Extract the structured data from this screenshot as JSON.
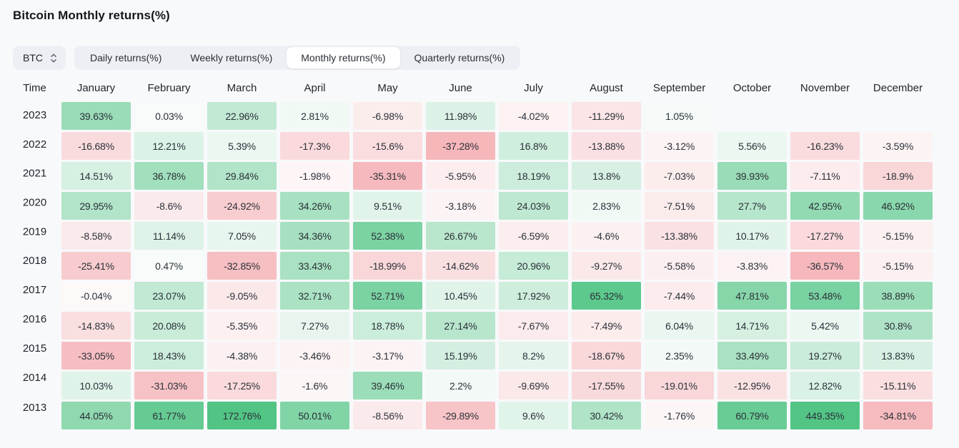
{
  "page": {
    "title": "Bitcoin Monthly returns(%)"
  },
  "selector": {
    "value": "BTC",
    "icon": "chevron-up-down-icon"
  },
  "tabs": [
    {
      "label": "Daily returns(%)",
      "active": false
    },
    {
      "label": "Weekly returns(%)",
      "active": false
    },
    {
      "label": "Monthly returns(%)",
      "active": true
    },
    {
      "label": "Quarterly returns(%)",
      "active": false
    }
  ],
  "heatmap": {
    "positive_max_color": "#52c585",
    "positive_min_color": "#f8fbfa",
    "negative_max_color": "#f5b2b6",
    "negative_min_color": "#fdf9f9",
    "positive_saturation_at": 70,
    "negative_saturation_at": 40
  },
  "chart_data": {
    "type": "heatmap",
    "title": "Bitcoin Monthly returns(%)",
    "time_label": "Time",
    "months": [
      "January",
      "February",
      "March",
      "April",
      "May",
      "June",
      "July",
      "August",
      "September",
      "October",
      "November",
      "December"
    ],
    "rows": [
      {
        "year": "2023",
        "values": [
          "39.63%",
          "0.03%",
          "22.96%",
          "2.81%",
          "-6.98%",
          "11.98%",
          "-4.02%",
          "-11.29%",
          "1.05%",
          null,
          null,
          null
        ]
      },
      {
        "year": "2022",
        "values": [
          "-16.68%",
          "12.21%",
          "5.39%",
          "-17.3%",
          "-15.6%",
          "-37.28%",
          "16.8%",
          "-13.88%",
          "-3.12%",
          "5.56%",
          "-16.23%",
          "-3.59%"
        ]
      },
      {
        "year": "2021",
        "values": [
          "14.51%",
          "36.78%",
          "29.84%",
          "-1.98%",
          "-35.31%",
          "-5.95%",
          "18.19%",
          "13.8%",
          "-7.03%",
          "39.93%",
          "-7.11%",
          "-18.9%"
        ]
      },
      {
        "year": "2020",
        "values": [
          "29.95%",
          "-8.6%",
          "-24.92%",
          "34.26%",
          "9.51%",
          "-3.18%",
          "24.03%",
          "2.83%",
          "-7.51%",
          "27.7%",
          "42.95%",
          "46.92%"
        ]
      },
      {
        "year": "2019",
        "values": [
          "-8.58%",
          "11.14%",
          "7.05%",
          "34.36%",
          "52.38%",
          "26.67%",
          "-6.59%",
          "-4.6%",
          "-13.38%",
          "10.17%",
          "-17.27%",
          "-5.15%"
        ]
      },
      {
        "year": "2018",
        "values": [
          "-25.41%",
          "0.47%",
          "-32.85%",
          "33.43%",
          "-18.99%",
          "-14.62%",
          "20.96%",
          "-9.27%",
          "-5.58%",
          "-3.83%",
          "-36.57%",
          "-5.15%"
        ]
      },
      {
        "year": "2017",
        "values": [
          "-0.04%",
          "23.07%",
          "-9.05%",
          "32.71%",
          "52.71%",
          "10.45%",
          "17.92%",
          "65.32%",
          "-7.44%",
          "47.81%",
          "53.48%",
          "38.89%"
        ]
      },
      {
        "year": "2016",
        "values": [
          "-14.83%",
          "20.08%",
          "-5.35%",
          "7.27%",
          "18.78%",
          "27.14%",
          "-7.67%",
          "-7.49%",
          "6.04%",
          "14.71%",
          "5.42%",
          "30.8%"
        ]
      },
      {
        "year": "2015",
        "values": [
          "-33.05%",
          "18.43%",
          "-4.38%",
          "-3.46%",
          "-3.17%",
          "15.19%",
          "8.2%",
          "-18.67%",
          "2.35%",
          "33.49%",
          "19.27%",
          "13.83%"
        ]
      },
      {
        "year": "2014",
        "values": [
          "10.03%",
          "-31.03%",
          "-17.25%",
          "-1.6%",
          "39.46%",
          "2.2%",
          "-9.69%",
          "-17.55%",
          "-19.01%",
          "-12.95%",
          "12.82%",
          "-15.11%"
        ]
      },
      {
        "year": "2013",
        "values": [
          "44.05%",
          "61.77%",
          "172.76%",
          "50.01%",
          "-8.56%",
          "-29.89%",
          "9.6%",
          "30.42%",
          "-1.76%",
          "60.79%",
          "449.35%",
          "-34.81%"
        ]
      }
    ]
  }
}
